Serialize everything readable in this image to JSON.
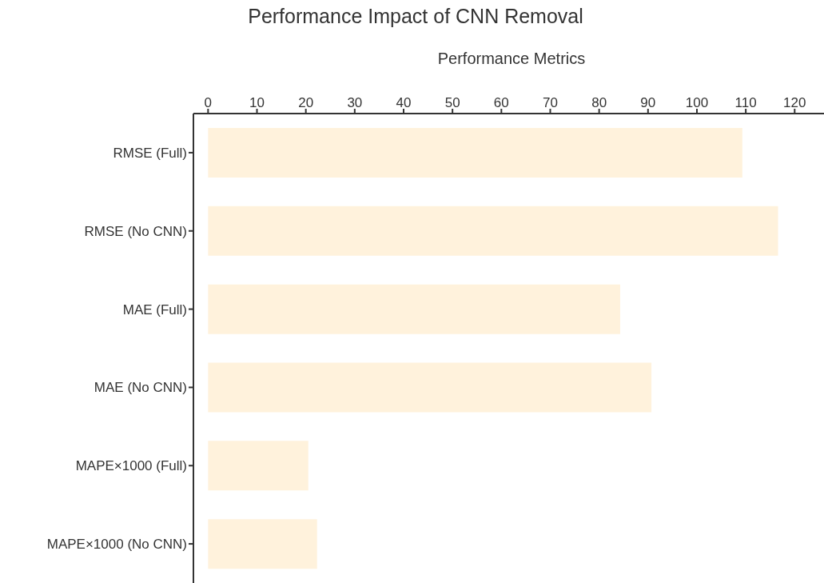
{
  "chart_data": {
    "type": "bar",
    "orientation": "horizontal",
    "title": "Performance Impact of CNN Removal",
    "xlabel": "Performance Metrics",
    "categories": [
      "RMSE (Full)",
      "RMSE (No CNN)",
      "MAE (Full)",
      "MAE (No CNN)",
      "MAPE×1000 (Full)",
      "MAPE×1000 (No CNN)"
    ],
    "values": [
      109.3,
      116.6,
      84.3,
      90.7,
      20.5,
      22.3
    ],
    "color": "#fff2dc",
    "xlim": [
      -3,
      126
    ],
    "xticks": [
      0,
      10,
      20,
      30,
      40,
      50,
      60,
      70,
      80,
      90,
      100,
      110,
      120
    ],
    "grid": false
  }
}
